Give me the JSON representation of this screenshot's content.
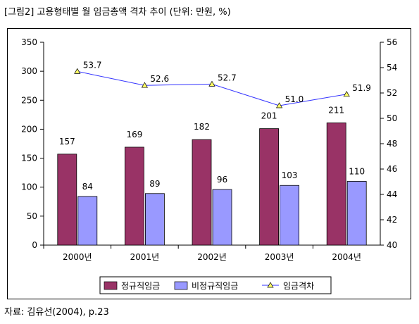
{
  "title": "[그림2] 고용형태별 월 임금총액 격차 추이 (단위: 만원, %)",
  "source": "자료: 김유선(2004), p.23",
  "chart_data": {
    "type": "bar",
    "categories": [
      "2000년",
      "2001년",
      "2002년",
      "2003년",
      "2004년"
    ],
    "series": [
      {
        "name": "정규직임금",
        "type": "bar",
        "axis": "left",
        "color": "#993366",
        "values": [
          157,
          169,
          182,
          201,
          211
        ]
      },
      {
        "name": "비정규직임금",
        "type": "bar",
        "axis": "left",
        "color": "#9999ff",
        "values": [
          84,
          89,
          96,
          103,
          110
        ]
      },
      {
        "name": "임금격차",
        "type": "line",
        "axis": "right",
        "color": "#3333ff",
        "marker_color": "#ffff66",
        "values": [
          53.7,
          52.6,
          52.7,
          51.0,
          51.9
        ]
      }
    ],
    "labels_left": [
      "157",
      "169",
      "182",
      "201",
      "211"
    ],
    "labels_right_bar": [
      "84",
      "89",
      "96",
      "103",
      "110"
    ],
    "labels_line": [
      "53.7",
      "52.6",
      "52.7",
      "51.0",
      "51.9"
    ],
    "y_left": {
      "min": 0,
      "max": 350,
      "step": 50,
      "ticks": [
        "0",
        "50",
        "100",
        "150",
        "200",
        "250",
        "300",
        "350"
      ]
    },
    "y_right": {
      "min": 40,
      "max": 56,
      "step": 2,
      "ticks": [
        "40",
        "42",
        "44",
        "46",
        "48",
        "50",
        "52",
        "54",
        "56"
      ]
    },
    "legend_position": "bottom",
    "grid": false
  }
}
